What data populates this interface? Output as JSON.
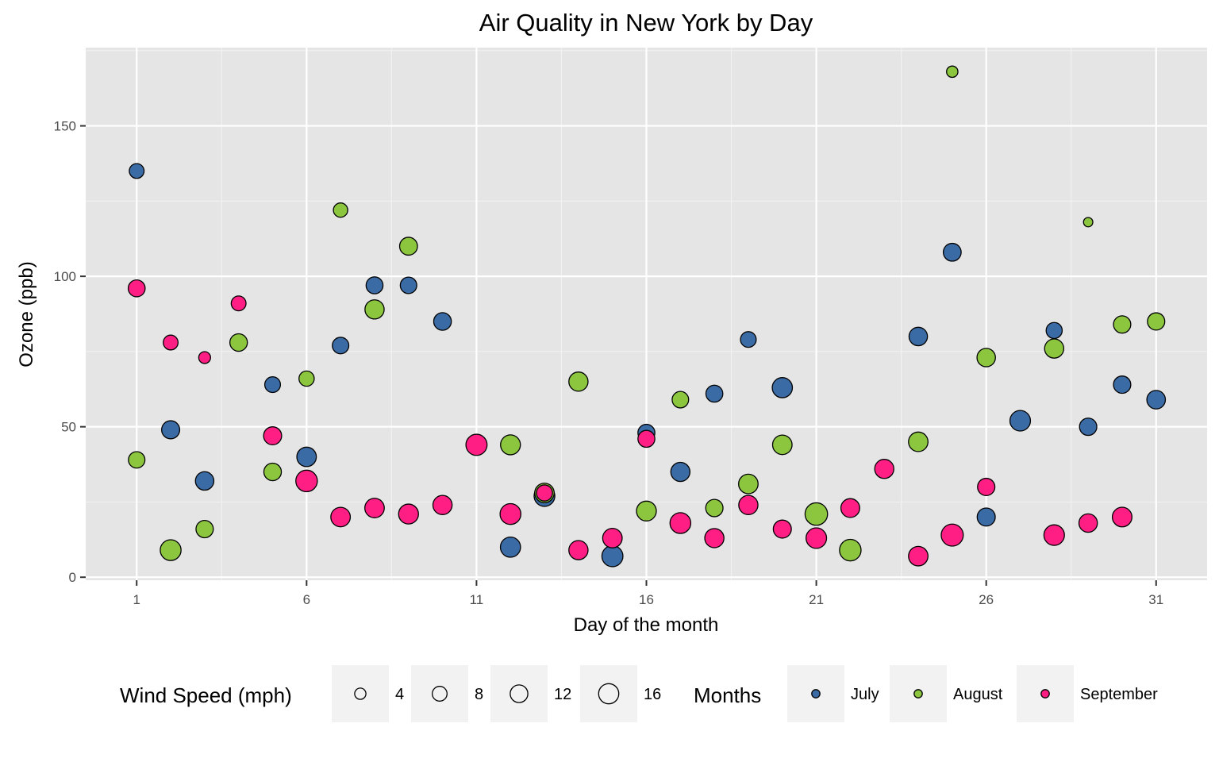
{
  "chart_data": {
    "type": "scatter",
    "title": "Air Quality in New York by Day",
    "xlabel": "Day of the month",
    "ylabel": "Ozone (ppb)",
    "xlim": [
      -0.5,
      32.5
    ],
    "ylim": [
      -1,
      176
    ],
    "x_ticks": [
      1,
      6,
      11,
      16,
      21,
      26,
      31
    ],
    "y_ticks": [
      0,
      50,
      100,
      150
    ],
    "grid": true,
    "legend_position": "bottom",
    "size_legend": {
      "title": "Wind Speed (mph)",
      "entries": [
        {
          "label": "4",
          "value": 4
        },
        {
          "label": "8",
          "value": 8
        },
        {
          "label": "12",
          "value": 12
        },
        {
          "label": "16",
          "value": 16
        }
      ]
    },
    "color_legend": {
      "title": "Months",
      "entries": [
        {
          "label": "July",
          "color": "#3A6BA5"
        },
        {
          "label": "August",
          "color": "#8CC63F"
        },
        {
          "label": "September",
          "color": "#FF1F84"
        }
      ]
    },
    "series": [
      {
        "name": "July",
        "color": "#3A6BA5",
        "points": [
          {
            "day": 1,
            "ozone": 135,
            "wind": 8
          },
          {
            "day": 2,
            "ozone": 49,
            "wind": 12.6
          },
          {
            "day": 3,
            "ozone": 32,
            "wind": 13.2
          },
          {
            "day": 5,
            "ozone": 64,
            "wind": 9.2
          },
          {
            "day": 6,
            "ozone": 40,
            "wind": 14.9
          },
          {
            "day": 7,
            "ozone": 77,
            "wind": 10.3
          },
          {
            "day": 8,
            "ozone": 97,
            "wind": 10.9
          },
          {
            "day": 9,
            "ozone": 97,
            "wind": 10.3
          },
          {
            "day": 10,
            "ozone": 85,
            "wind": 12
          },
          {
            "day": 12,
            "ozone": 10,
            "wind": 16
          },
          {
            "day": 13,
            "ozone": 27,
            "wind": 17
          },
          {
            "day": 15,
            "ozone": 7,
            "wind": 17.5
          },
          {
            "day": 16,
            "ozone": 48,
            "wind": 11
          },
          {
            "day": 17,
            "ozone": 35,
            "wind": 14.3
          },
          {
            "day": 18,
            "ozone": 61,
            "wind": 10.9
          },
          {
            "day": 19,
            "ozone": 79,
            "wind": 9.2
          },
          {
            "day": 20,
            "ozone": 63,
            "wind": 16
          },
          {
            "day": 24,
            "ozone": 80,
            "wind": 13.2
          },
          {
            "day": 25,
            "ozone": 108,
            "wind": 12.3
          },
          {
            "day": 26,
            "ozone": 20,
            "wind": 12.6
          },
          {
            "day": 27,
            "ozone": 52,
            "wind": 16.6
          },
          {
            "day": 28,
            "ozone": 82,
            "wind": 9.7
          },
          {
            "day": 29,
            "ozone": 50,
            "wind": 11.5
          },
          {
            "day": 30,
            "ozone": 64,
            "wind": 11.5
          },
          {
            "day": 31,
            "ozone": 59,
            "wind": 13.4
          }
        ]
      },
      {
        "name": "August",
        "color": "#8CC63F",
        "points": [
          {
            "day": 1,
            "ozone": 39,
            "wind": 10.3
          },
          {
            "day": 2,
            "ozone": 9,
            "wind": 17.1
          },
          {
            "day": 3,
            "ozone": 16,
            "wind": 11.5
          },
          {
            "day": 4,
            "ozone": 78,
            "wind": 11.8
          },
          {
            "day": 5,
            "ozone": 35,
            "wind": 11.8
          },
          {
            "day": 6,
            "ozone": 66,
            "wind": 8.6
          },
          {
            "day": 7,
            "ozone": 122,
            "wind": 7.4
          },
          {
            "day": 8,
            "ozone": 89,
            "wind": 14.4
          },
          {
            "day": 9,
            "ozone": 110,
            "wind": 12.3
          },
          {
            "day": 12,
            "ozone": 44,
            "wind": 15.5
          },
          {
            "day": 13,
            "ozone": 28,
            "wind": 14.9
          },
          {
            "day": 14,
            "ozone": 65,
            "wind": 14.4
          },
          {
            "day": 16,
            "ozone": 22,
            "wind": 15.5
          },
          {
            "day": 17,
            "ozone": 59,
            "wind": 10.3
          },
          {
            "day": 18,
            "ozone": 23,
            "wind": 11.5
          },
          {
            "day": 19,
            "ozone": 31,
            "wind": 14.9
          },
          {
            "day": 20,
            "ozone": 44,
            "wind": 14.9
          },
          {
            "day": 21,
            "ozone": 21,
            "wind": 20.1
          },
          {
            "day": 22,
            "ozone": 9,
            "wind": 18.4
          },
          {
            "day": 24,
            "ozone": 45,
            "wind": 14.9
          },
          {
            "day": 25,
            "ozone": 168,
            "wind": 4.1
          },
          {
            "day": 26,
            "ozone": 73,
            "wind": 13.2
          },
          {
            "day": 28,
            "ozone": 76,
            "wind": 14.4
          },
          {
            "day": 29,
            "ozone": 118,
            "wind": 2.3
          },
          {
            "day": 30,
            "ozone": 84,
            "wind": 11.5
          },
          {
            "day": 31,
            "ozone": 85,
            "wind": 11.5
          }
        ]
      },
      {
        "name": "September",
        "color": "#FF1F84",
        "points": [
          {
            "day": 1,
            "ozone": 96,
            "wind": 10.9
          },
          {
            "day": 2,
            "ozone": 78,
            "wind": 8
          },
          {
            "day": 3,
            "ozone": 73,
            "wind": 4.6
          },
          {
            "day": 4,
            "ozone": 91,
            "wind": 8
          },
          {
            "day": 5,
            "ozone": 47,
            "wind": 12.6
          },
          {
            "day": 6,
            "ozone": 32,
            "wind": 18.4
          },
          {
            "day": 7,
            "ozone": 20,
            "wind": 14.9
          },
          {
            "day": 8,
            "ozone": 23,
            "wind": 14.9
          },
          {
            "day": 9,
            "ozone": 21,
            "wind": 15.5
          },
          {
            "day": 10,
            "ozone": 24,
            "wind": 14.4
          },
          {
            "day": 11,
            "ozone": 44,
            "wind": 17.7
          },
          {
            "day": 12,
            "ozone": 21,
            "wind": 17.1
          },
          {
            "day": 13,
            "ozone": 28,
            "wind": 9.7
          },
          {
            "day": 14,
            "ozone": 9,
            "wind": 14.4
          },
          {
            "day": 15,
            "ozone": 13,
            "wind": 14.9
          },
          {
            "day": 16,
            "ozone": 46,
            "wind": 10.9
          },
          {
            "day": 17,
            "ozone": 18,
            "wind": 17.1
          },
          {
            "day": 18,
            "ozone": 13,
            "wind": 14.4
          },
          {
            "day": 19,
            "ozone": 24,
            "wind": 14.4
          },
          {
            "day": 20,
            "ozone": 16,
            "wind": 12.6
          },
          {
            "day": 21,
            "ozone": 13,
            "wind": 16.6
          },
          {
            "day": 22,
            "ozone": 23,
            "wind": 13.8
          },
          {
            "day": 23,
            "ozone": 36,
            "wind": 14.3
          },
          {
            "day": 24,
            "ozone": 7,
            "wind": 14.9
          },
          {
            "day": 25,
            "ozone": 14,
            "wind": 19.3
          },
          {
            "day": 26,
            "ozone": 30,
            "wind": 11.5
          },
          {
            "day": 28,
            "ozone": 14,
            "wind": 16.6
          },
          {
            "day": 29,
            "ozone": 18,
            "wind": 13.2
          },
          {
            "day": 30,
            "ozone": 20,
            "wind": 15.1
          }
        ]
      }
    ]
  }
}
